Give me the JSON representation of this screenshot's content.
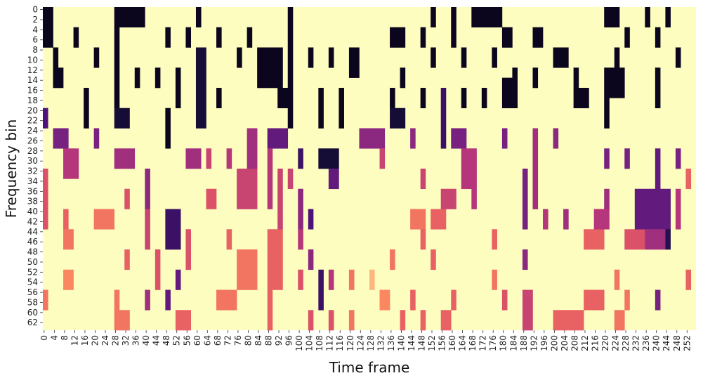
{
  "chart_data": {
    "type": "heatmap",
    "title": "",
    "xlabel": "Time frame",
    "ylabel": "Frequency bin",
    "n_cols": 256,
    "n_rows": 64,
    "x_tick_step": 4,
    "y_tick_step": 2,
    "xlim": [
      0,
      255
    ],
    "ylim": [
      0,
      63
    ],
    "y_direction": "top-to-bottom",
    "colormap": "magma",
    "colormap_stops": [
      "#000004",
      "#1c1044",
      "#4f127b",
      "#812581",
      "#b5367a",
      "#e55964",
      "#fb8761",
      "#fec287",
      "#fcfdbf"
    ],
    "background": "#fcfdbf",
    "colorbar": false,
    "grid": false,
    "value_range": [
      0,
      1
    ],
    "value_note": "1 = background, lower values = active (darker)",
    "cells": [
      {
        "x": 0,
        "x2": 3,
        "y": 0,
        "y2": 7,
        "v": 0.05
      },
      {
        "x": 0,
        "x2": 1,
        "y": 20,
        "y2": 23,
        "v": 0.25
      },
      {
        "x": 4,
        "x2": 5,
        "y": 8,
        "y2": 15,
        "v": 0.05
      },
      {
        "x": 6,
        "x2": 7,
        "y": 12,
        "y2": 15,
        "v": 0.05
      },
      {
        "x": 4,
        "x2": 9,
        "y": 24,
        "y2": 27,
        "v": 0.35
      },
      {
        "x": 8,
        "x2": 13,
        "y": 28,
        "y2": 33,
        "v": 0.5
      },
      {
        "x": 0,
        "x2": 1,
        "y": 32,
        "y2": 43,
        "v": 0.6
      },
      {
        "x": 8,
        "x2": 9,
        "y": 40,
        "y2": 43,
        "v": 0.65
      },
      {
        "x": 8,
        "x2": 11,
        "y": 44,
        "y2": 47,
        "v": 0.7
      },
      {
        "x": 8,
        "x2": 11,
        "y": 52,
        "y2": 55,
        "v": 0.75
      },
      {
        "x": 0,
        "x2": 1,
        "y": 56,
        "y2": 59,
        "v": 0.7
      },
      {
        "x": 12,
        "x2": 13,
        "y": 4,
        "y2": 7,
        "v": 0.05
      },
      {
        "x": 16,
        "x2": 17,
        "y": 16,
        "y2": 23,
        "v": 0.05
      },
      {
        "x": 20,
        "x2": 21,
        "y": 8,
        "y2": 11,
        "v": 0.05
      },
      {
        "x": 20,
        "x2": 21,
        "y": 24,
        "y2": 27,
        "v": 0.35
      },
      {
        "x": 20,
        "x2": 27,
        "y": 40,
        "y2": 43,
        "v": 0.7
      },
      {
        "x": 28,
        "x2": 39,
        "y": 0,
        "y2": 3,
        "v": 0.05
      },
      {
        "x": 28,
        "x2": 29,
        "y": 4,
        "y2": 19,
        "v": 0.05
      },
      {
        "x": 28,
        "x2": 33,
        "y": 20,
        "y2": 23,
        "v": 0.1
      },
      {
        "x": 28,
        "x2": 35,
        "y": 28,
        "y2": 31,
        "v": 0.45
      },
      {
        "x": 28,
        "x2": 29,
        "y": 56,
        "y2": 59,
        "v": 0.7
      },
      {
        "x": 28,
        "x2": 33,
        "y": 60,
        "y2": 63,
        "v": 0.7
      },
      {
        "x": 32,
        "x2": 33,
        "y": 36,
        "y2": 39,
        "v": 0.6
      },
      {
        "x": 32,
        "x2": 33,
        "y": 48,
        "y2": 51,
        "v": 0.65
      },
      {
        "x": 36,
        "x2": 37,
        "y": 12,
        "y2": 15,
        "v": 0.05
      },
      {
        "x": 40,
        "x2": 41,
        "y": 32,
        "y2": 39,
        "v": 0.4
      },
      {
        "x": 40,
        "x2": 41,
        "y": 40,
        "y2": 47,
        "v": 0.55
      },
      {
        "x": 40,
        "x2": 41,
        "y": 56,
        "y2": 59,
        "v": 0.45
      },
      {
        "x": 44,
        "x2": 45,
        "y": 12,
        "y2": 15,
        "v": 0.05
      },
      {
        "x": 44,
        "x2": 45,
        "y": 48,
        "y2": 55,
        "v": 0.6
      },
      {
        "x": 48,
        "x2": 49,
        "y": 4,
        "y2": 7,
        "v": 0.05
      },
      {
        "x": 48,
        "x2": 49,
        "y": 20,
        "y2": 27,
        "v": 0.05
      },
      {
        "x": 48,
        "x2": 53,
        "y": 40,
        "y2": 47,
        "v": 0.2
      },
      {
        "x": 48,
        "x2": 49,
        "y": 56,
        "y2": 59,
        "v": 0.3
      },
      {
        "x": 52,
        "x2": 53,
        "y": 12,
        "y2": 19,
        "v": 0.05
      },
      {
        "x": 52,
        "x2": 53,
        "y": 52,
        "y2": 55,
        "v": 0.3
      },
      {
        "x": 52,
        "x2": 57,
        "y": 60,
        "y2": 63,
        "v": 0.65
      },
      {
        "x": 56,
        "x2": 57,
        "y": 4,
        "y2": 7,
        "v": 0.05
      },
      {
        "x": 56,
        "x2": 61,
        "y": 28,
        "y2": 31,
        "v": 0.45
      },
      {
        "x": 56,
        "x2": 57,
        "y": 44,
        "y2": 51,
        "v": 0.6
      },
      {
        "x": 60,
        "x2": 61,
        "y": 0,
        "y2": 3,
        "v": 0.05
      },
      {
        "x": 60,
        "x2": 63,
        "y": 8,
        "y2": 23,
        "v": 0.1
      },
      {
        "x": 64,
        "x2": 65,
        "y": 28,
        "y2": 31,
        "v": 0.55
      },
      {
        "x": 64,
        "x2": 67,
        "y": 36,
        "y2": 39,
        "v": 0.6
      },
      {
        "x": 68,
        "x2": 69,
        "y": 4,
        "y2": 7,
        "v": 0.05
      },
      {
        "x": 68,
        "x2": 69,
        "y": 16,
        "y2": 19,
        "v": 0.05
      },
      {
        "x": 68,
        "x2": 75,
        "y": 56,
        "y2": 59,
        "v": 0.7
      },
      {
        "x": 72,
        "x2": 73,
        "y": 28,
        "y2": 31,
        "v": 0.5
      },
      {
        "x": 72,
        "x2": 73,
        "y": 44,
        "y2": 47,
        "v": 0.65
      },
      {
        "x": 76,
        "x2": 77,
        "y": 8,
        "y2": 11,
        "v": 0.05
      },
      {
        "x": 76,
        "x2": 83,
        "y": 32,
        "y2": 39,
        "v": 0.55
      },
      {
        "x": 76,
        "x2": 83,
        "y": 48,
        "y2": 55,
        "v": 0.7
      },
      {
        "x": 80,
        "x2": 81,
        "y": 4,
        "y2": 7,
        "v": 0.05
      },
      {
        "x": 80,
        "x2": 83,
        "y": 24,
        "y2": 31,
        "v": 0.45
      },
      {
        "x": 84,
        "x2": 93,
        "y": 8,
        "y2": 15,
        "v": 0.05
      },
      {
        "x": 88,
        "x2": 95,
        "y": 24,
        "y2": 27,
        "v": 0.3
      },
      {
        "x": 88,
        "x2": 89,
        "y": 28,
        "y2": 39,
        "v": 0.5
      },
      {
        "x": 88,
        "x2": 93,
        "y": 44,
        "y2": 55,
        "v": 0.65
      },
      {
        "x": 88,
        "x2": 89,
        "y": 56,
        "y2": 63,
        "v": 0.65
      },
      {
        "x": 92,
        "x2": 95,
        "y": 16,
        "y2": 19,
        "v": 0.05
      },
      {
        "x": 92,
        "x2": 93,
        "y": 32,
        "y2": 43,
        "v": 0.55
      },
      {
        "x": 96,
        "x2": 97,
        "y": 0,
        "y2": 23,
        "v": 0.05
      },
      {
        "x": 96,
        "x2": 97,
        "y": 32,
        "y2": 35,
        "v": 0.55
      },
      {
        "x": 100,
        "x2": 101,
        "y": 28,
        "y2": 31,
        "v": 0.2
      },
      {
        "x": 100,
        "x2": 101,
        "y": 36,
        "y2": 43,
        "v": 0.4
      },
      {
        "x": 100,
        "x2": 101,
        "y": 44,
        "y2": 47,
        "v": 0.5
      },
      {
        "x": 100,
        "x2": 101,
        "y": 52,
        "y2": 55,
        "v": 0.6
      },
      {
        "x": 104,
        "x2": 105,
        "y": 8,
        "y2": 11,
        "v": 0.05
      },
      {
        "x": 104,
        "x2": 105,
        "y": 40,
        "y2": 43,
        "v": 0.25
      },
      {
        "x": 104,
        "x2": 105,
        "y": 48,
        "y2": 51,
        "v": 0.4
      },
      {
        "x": 104,
        "x2": 105,
        "y": 60,
        "y2": 63,
        "v": 0.6
      },
      {
        "x": 108,
        "x2": 109,
        "y": 16,
        "y2": 23,
        "v": 0.05
      },
      {
        "x": 108,
        "x2": 115,
        "y": 28,
        "y2": 31,
        "v": 0.1
      },
      {
        "x": 108,
        "x2": 109,
        "y": 52,
        "y2": 59,
        "v": 0.2
      },
      {
        "x": 112,
        "x2": 113,
        "y": 8,
        "y2": 11,
        "v": 0.05
      },
      {
        "x": 112,
        "x2": 115,
        "y": 32,
        "y2": 35,
        "v": 0.3
      },
      {
        "x": 112,
        "x2": 113,
        "y": 52,
        "y2": 55,
        "v": 0.5
      },
      {
        "x": 112,
        "x2": 113,
        "y": 60,
        "y2": 63,
        "v": 0.6
      },
      {
        "x": 116,
        "x2": 117,
        "y": 16,
        "y2": 23,
        "v": 0.05
      },
      {
        "x": 120,
        "x2": 123,
        "y": 8,
        "y2": 13,
        "v": 0.05
      },
      {
        "x": 120,
        "x2": 121,
        "y": 52,
        "y2": 55,
        "v": 0.7
      },
      {
        "x": 120,
        "x2": 121,
        "y": 60,
        "y2": 63,
        "v": 0.7
      },
      {
        "x": 124,
        "x2": 133,
        "y": 24,
        "y2": 27,
        "v": 0.4
      },
      {
        "x": 128,
        "x2": 129,
        "y": 52,
        "y2": 55,
        "v": 0.85
      },
      {
        "x": 132,
        "x2": 133,
        "y": 28,
        "y2": 31,
        "v": 0.55
      },
      {
        "x": 132,
        "x2": 135,
        "y": 56,
        "y2": 59,
        "v": 0.75
      },
      {
        "x": 136,
        "x2": 137,
        "y": 16,
        "y2": 19,
        "v": 0.05
      },
      {
        "x": 136,
        "x2": 141,
        "y": 4,
        "y2": 7,
        "v": 0.05
      },
      {
        "x": 136,
        "x2": 141,
        "y": 20,
        "y2": 23,
        "v": 0.1
      },
      {
        "x": 136,
        "x2": 137,
        "y": 48,
        "y2": 51,
        "v": 0.7
      },
      {
        "x": 140,
        "x2": 141,
        "y": 12,
        "y2": 15,
        "v": 0.05
      },
      {
        "x": 140,
        "x2": 141,
        "y": 60,
        "y2": 63,
        "v": 0.65
      },
      {
        "x": 144,
        "x2": 145,
        "y": 24,
        "y2": 27,
        "v": 0.4
      },
      {
        "x": 144,
        "x2": 149,
        "y": 40,
        "y2": 43,
        "v": 0.7
      },
      {
        "x": 144,
        "x2": 145,
        "y": 56,
        "y2": 59,
        "v": 0.65
      },
      {
        "x": 148,
        "x2": 149,
        "y": 4,
        "y2": 7,
        "v": 0.05
      },
      {
        "x": 148,
        "x2": 149,
        "y": 16,
        "y2": 19,
        "v": 0.05
      },
      {
        "x": 148,
        "x2": 149,
        "y": 32,
        "y2": 35,
        "v": 0.55
      },
      {
        "x": 148,
        "x2": 149,
        "y": 44,
        "y2": 47,
        "v": 0.65
      },
      {
        "x": 148,
        "x2": 149,
        "y": 60,
        "y2": 63,
        "v": 0.65
      },
      {
        "x": 152,
        "x2": 153,
        "y": 0,
        "y2": 3,
        "v": 0.05
      },
      {
        "x": 152,
        "x2": 153,
        "y": 8,
        "y2": 11,
        "v": 0.05
      },
      {
        "x": 152,
        "x2": 157,
        "y": 40,
        "y2": 43,
        "v": 0.65
      },
      {
        "x": 152,
        "x2": 153,
        "y": 48,
        "y2": 51,
        "v": 0.65
      },
      {
        "x": 156,
        "x2": 157,
        "y": 16,
        "y2": 27,
        "v": 0.2
      },
      {
        "x": 156,
        "x2": 161,
        "y": 36,
        "y2": 39,
        "v": 0.55
      },
      {
        "x": 156,
        "x2": 159,
        "y": 60,
        "y2": 63,
        "v": 0.65
      },
      {
        "x": 160,
        "x2": 161,
        "y": 0,
        "y2": 7,
        "v": 0.05
      },
      {
        "x": 160,
        "x2": 165,
        "y": 24,
        "y2": 27,
        "v": 0.35
      },
      {
        "x": 160,
        "x2": 161,
        "y": 56,
        "y2": 59,
        "v": 0.65
      },
      {
        "x": 164,
        "x2": 165,
        "y": 8,
        "y2": 11,
        "v": 0.05
      },
      {
        "x": 164,
        "x2": 165,
        "y": 16,
        "y2": 19,
        "v": 0.05
      },
      {
        "x": 164,
        "x2": 169,
        "y": 28,
        "y2": 35,
        "v": 0.5
      },
      {
        "x": 168,
        "x2": 169,
        "y": 36,
        "y2": 39,
        "v": 0.5
      },
      {
        "x": 168,
        "x2": 179,
        "y": 0,
        "y2": 3,
        "v": 0.05
      },
      {
        "x": 172,
        "x2": 173,
        "y": 16,
        "y2": 19,
        "v": 0.05
      },
      {
        "x": 176,
        "x2": 177,
        "y": 8,
        "y2": 11,
        "v": 0.05
      },
      {
        "x": 176,
        "x2": 177,
        "y": 44,
        "y2": 47,
        "v": 0.65
      },
      {
        "x": 176,
        "x2": 177,
        "y": 52,
        "y2": 55,
        "v": 0.7
      },
      {
        "x": 180,
        "x2": 183,
        "y": 4,
        "y2": 7,
        "v": 0.05
      },
      {
        "x": 180,
        "x2": 185,
        "y": 14,
        "y2": 19,
        "v": 0.05
      },
      {
        "x": 180,
        "x2": 181,
        "y": 24,
        "y2": 27,
        "v": 0.35
      },
      {
        "x": 180,
        "x2": 181,
        "y": 56,
        "y2": 59,
        "v": 0.6
      },
      {
        "x": 184,
        "x2": 185,
        "y": 12,
        "y2": 17,
        "v": 0.05
      },
      {
        "x": 188,
        "x2": 189,
        "y": 32,
        "y2": 43,
        "v": 0.35
      },
      {
        "x": 188,
        "x2": 189,
        "y": 48,
        "y2": 51,
        "v": 0.4
      },
      {
        "x": 188,
        "x2": 191,
        "y": 56,
        "y2": 63,
        "v": 0.55
      },
      {
        "x": 192,
        "x2": 195,
        "y": 4,
        "y2": 7,
        "v": 0.05
      },
      {
        "x": 192,
        "x2": 193,
        "y": 12,
        "y2": 15,
        "v": 0.05
      },
      {
        "x": 192,
        "x2": 193,
        "y": 24,
        "y2": 39,
        "v": 0.45
      },
      {
        "x": 196,
        "x2": 197,
        "y": 40,
        "y2": 43,
        "v": 0.5
      },
      {
        "x": 200,
        "x2": 201,
        "y": 24,
        "y2": 27,
        "v": 0.4
      },
      {
        "x": 200,
        "x2": 205,
        "y": 8,
        "y2": 11,
        "v": 0.05
      },
      {
        "x": 200,
        "x2": 211,
        "y": 60,
        "y2": 63,
        "v": 0.65
      },
      {
        "x": 204,
        "x2": 205,
        "y": 40,
        "y2": 43,
        "v": 0.45
      },
      {
        "x": 208,
        "x2": 209,
        "y": 12,
        "y2": 15,
        "v": 0.05
      },
      {
        "x": 208,
        "x2": 213,
        "y": 16,
        "y2": 19,
        "v": 0.05
      },
      {
        "x": 212,
        "x2": 219,
        "y": 44,
        "y2": 47,
        "v": 0.65
      },
      {
        "x": 212,
        "x2": 219,
        "y": 56,
        "y2": 59,
        "v": 0.65
      },
      {
        "x": 216,
        "x2": 221,
        "y": 40,
        "y2": 43,
        "v": 0.5
      },
      {
        "x": 220,
        "x2": 225,
        "y": 0,
        "y2": 3,
        "v": 0.05
      },
      {
        "x": 220,
        "x2": 227,
        "y": 12,
        "y2": 17,
        "v": 0.05
      },
      {
        "x": 220,
        "x2": 221,
        "y": 18,
        "y2": 23,
        "v": 0.05
      },
      {
        "x": 220,
        "x2": 221,
        "y": 28,
        "y2": 31,
        "v": 0.35
      },
      {
        "x": 220,
        "x2": 221,
        "y": 36,
        "y2": 39,
        "v": 0.45
      },
      {
        "x": 224,
        "x2": 225,
        "y": 8,
        "y2": 11,
        "v": 0.05
      },
      {
        "x": 224,
        "x2": 225,
        "y": 52,
        "y2": 55,
        "v": 0.7
      },
      {
        "x": 224,
        "x2": 227,
        "y": 60,
        "y2": 63,
        "v": 0.7
      },
      {
        "x": 228,
        "x2": 229,
        "y": 4,
        "y2": 7,
        "v": 0.05
      },
      {
        "x": 228,
        "x2": 229,
        "y": 28,
        "y2": 31,
        "v": 0.35
      },
      {
        "x": 228,
        "x2": 235,
        "y": 44,
        "y2": 47,
        "v": 0.6
      },
      {
        "x": 228,
        "x2": 229,
        "y": 56,
        "y2": 59,
        "v": 0.7
      },
      {
        "x": 232,
        "x2": 245,
        "y": 36,
        "y2": 43,
        "v": 0.3
      },
      {
        "x": 236,
        "x2": 237,
        "y": 0,
        "y2": 3,
        "v": 0.05
      },
      {
        "x": 236,
        "x2": 243,
        "y": 44,
        "y2": 47,
        "v": 0.45
      },
      {
        "x": 240,
        "x2": 241,
        "y": 4,
        "y2": 7,
        "v": 0.05
      },
      {
        "x": 240,
        "x2": 241,
        "y": 12,
        "y2": 19,
        "v": 0.05
      },
      {
        "x": 240,
        "x2": 241,
        "y": 28,
        "y2": 35,
        "v": 0.3
      },
      {
        "x": 240,
        "x2": 241,
        "y": 56,
        "y2": 59,
        "v": 0.35
      },
      {
        "x": 244,
        "x2": 245,
        "y": 0,
        "y2": 3,
        "v": 0.05
      },
      {
        "x": 244,
        "x2": 245,
        "y": 44,
        "y2": 47,
        "v": 0.15
      },
      {
        "x": 248,
        "x2": 249,
        "y": 8,
        "y2": 11,
        "v": 0.05
      },
      {
        "x": 248,
        "x2": 249,
        "y": 28,
        "y2": 31,
        "v": 0.35
      },
      {
        "x": 248,
        "x2": 249,
        "y": 36,
        "y2": 43,
        "v": 0.5
      },
      {
        "x": 252,
        "x2": 253,
        "y": 32,
        "y2": 35,
        "v": 0.65
      },
      {
        "x": 252,
        "x2": 253,
        "y": 52,
        "y2": 55,
        "v": 0.65
      }
    ]
  }
}
